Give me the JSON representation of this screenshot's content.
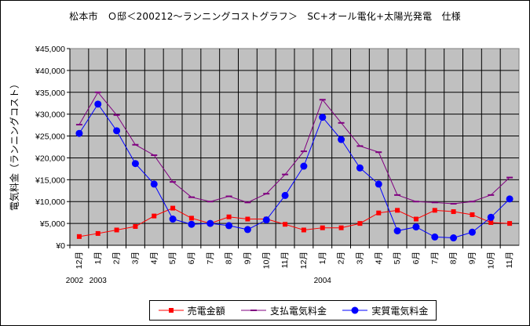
{
  "chart_data": {
    "type": "line",
    "title": "松本市　Ｏ邸＜200212～ランニングコストグラフ＞　SC+オール電化+太陽光発電　仕様",
    "ylabel": "電気料金（ランニングコスト）",
    "xlabel": "",
    "ylim": [
      0,
      45000
    ],
    "y_step": 5000,
    "y_tick_labels": [
      "¥0",
      "¥5,000",
      "¥10,000",
      "¥15,000",
      "¥20,000",
      "¥25,000",
      "¥30,000",
      "¥35,000",
      "¥40,000",
      "¥45,000"
    ],
    "categories": [
      "12月",
      "1月",
      "2月",
      "3月",
      "4月",
      "5月",
      "6月",
      "7月",
      "8月",
      "9月",
      "10月",
      "11月",
      "12月",
      "1月",
      "2月",
      "3月",
      "4月",
      "5月",
      "6月",
      "7月",
      "8月",
      "9月",
      "10月",
      "11月"
    ],
    "year_labels": [
      {
        "text": "2002",
        "index": 0
      },
      {
        "text": "2003",
        "index": 1
      },
      {
        "text": "2004",
        "index": 13
      }
    ],
    "grid": true,
    "legend_position": "bottom",
    "series": [
      {
        "name": "売電金額",
        "color": "#ff0000",
        "marker": "square",
        "values": [
          2000,
          2700,
          3500,
          4300,
          6700,
          8500,
          6200,
          5000,
          6500,
          6000,
          6000,
          4800,
          3500,
          4000,
          4000,
          5000,
          7400,
          8000,
          6000,
          8000,
          7700,
          7000,
          5200,
          5000
        ]
      },
      {
        "name": "支払電気料金",
        "color": "#800080",
        "marker": "dash",
        "values": [
          27600,
          35000,
          29800,
          23000,
          20600,
          14500,
          11000,
          10000,
          11200,
          9800,
          11800,
          16200,
          21500,
          33300,
          28000,
          22700,
          21300,
          11500,
          10000,
          9800,
          9500,
          10000,
          11500,
          15500
        ]
      },
      {
        "name": "実質電気料金",
        "color": "#0000ff",
        "marker": "circle",
        "values": [
          25600,
          32300,
          26200,
          18700,
          14000,
          6000,
          4800,
          5000,
          4500,
          3600,
          5800,
          11400,
          18100,
          29300,
          24200,
          17700,
          14000,
          3300,
          4200,
          1900,
          1700,
          3000,
          6400,
          10600
        ]
      }
    ]
  }
}
